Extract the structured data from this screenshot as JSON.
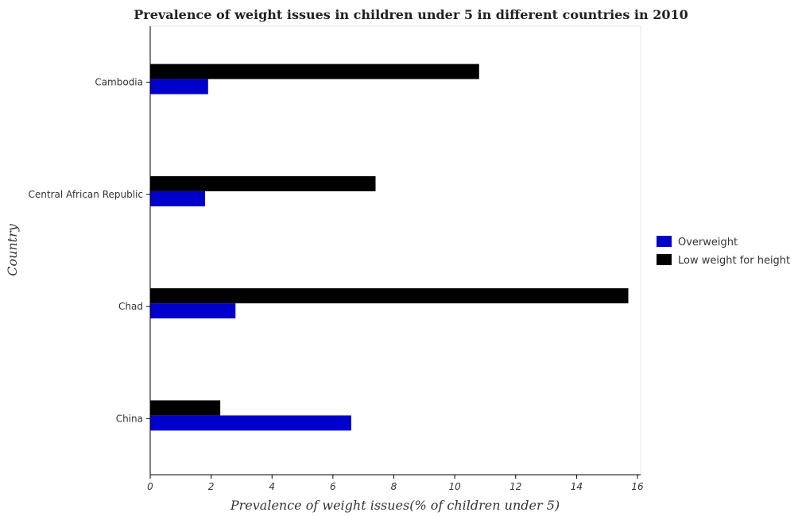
{
  "chart_data": {
    "type": "bar",
    "orientation": "horizontal",
    "title": "Prevalence of weight issues in children under 5 in different countries in 2010",
    "xlabel": "Prevalence of weight issues(% of children under 5)",
    "ylabel": "Country",
    "categories": [
      "Cambodia",
      "Central African Republic",
      "Chad",
      "China"
    ],
    "series": [
      {
        "name": "Overweight",
        "color": "#0000cc",
        "values": [
          1.9,
          1.8,
          2.8,
          6.6
        ]
      },
      {
        "name": "Low weight for height",
        "color": "#000000",
        "values": [
          10.8,
          7.4,
          15.7,
          2.3
        ]
      }
    ],
    "xlim": [
      0,
      16
    ],
    "xticks": [
      0,
      2,
      4,
      6,
      8,
      10,
      12,
      14,
      16
    ],
    "grid": false,
    "legend_position": "right"
  }
}
